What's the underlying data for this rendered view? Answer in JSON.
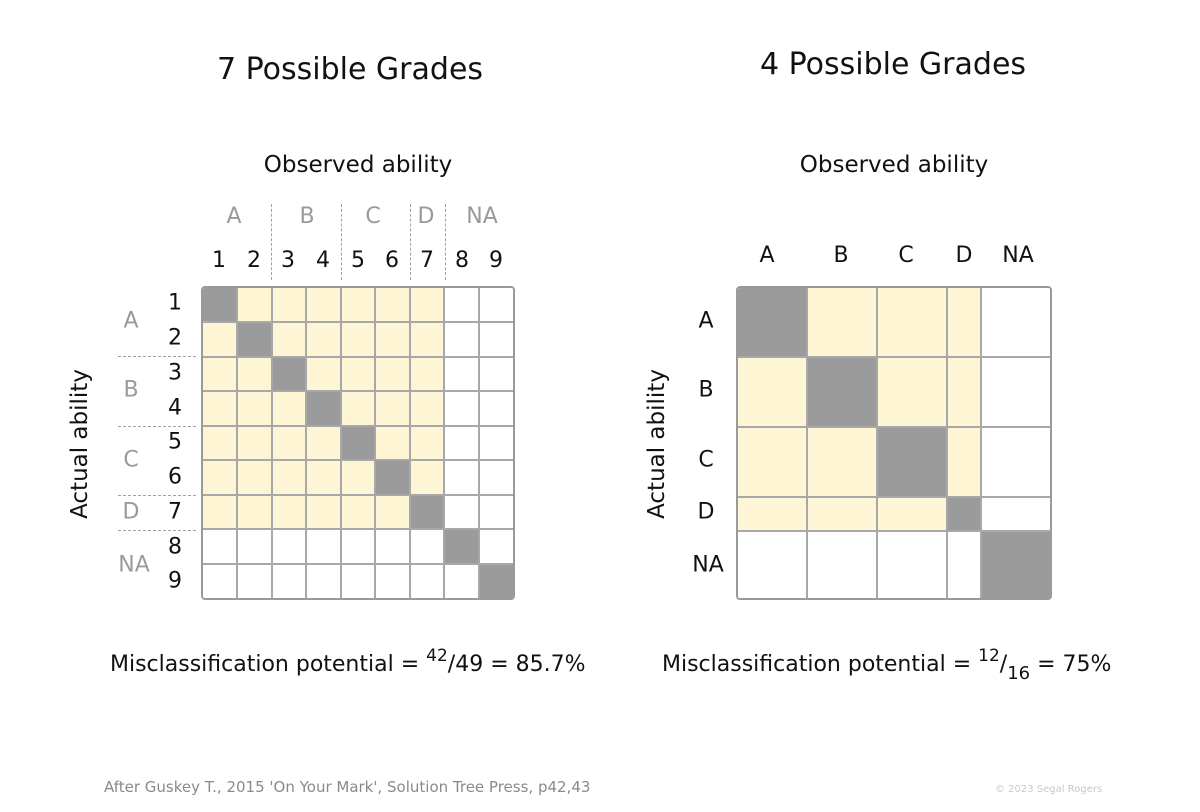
{
  "left_panel": {
    "title": "7 Possible Grades",
    "x_axis_title": "Observed ability",
    "y_axis_title": "Actual ability",
    "grade_groups": [
      "A",
      "B",
      "C",
      "D",
      "NA"
    ],
    "levels": [
      "1",
      "2",
      "3",
      "4",
      "5",
      "6",
      "7",
      "8",
      "9"
    ],
    "formula_prefix": "Misclassification potential =",
    "formula_numerator": "42",
    "formula_denominator": "49",
    "formula_result": "= 85.7%",
    "cell_colors": {
      "diagonal": "#9b9b9b",
      "misclassification": "#fdf5d3",
      "other": "#ffffff"
    }
  },
  "right_panel": {
    "title": "4 Possible Grades",
    "x_axis_title": "Observed ability",
    "y_axis_title": "Actual ability",
    "grade_labels": [
      "A",
      "B",
      "C",
      "D",
      "NA"
    ],
    "formula_prefix": "Misclassification potential =",
    "formula_numerator": "12",
    "formula_denominator": "16",
    "formula_result": "= 75%"
  },
  "footer": {
    "citation": "After Guskey T., 2015  'On Your Mark', Solution Tree Press, p42,43",
    "copyright": "© 2023 Segal Rogers"
  }
}
